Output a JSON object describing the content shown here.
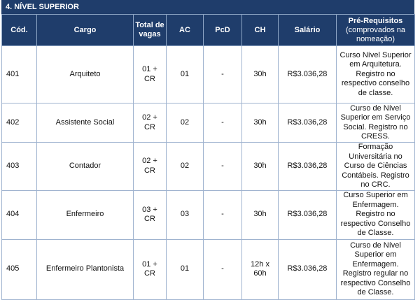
{
  "section_title": "4. NÍVEL SUPERIOR",
  "table": {
    "headers": [
      "Cód.",
      "Cargo",
      "Total de vagas",
      "AC",
      "PcD",
      "CH",
      "Salário"
    ],
    "prereq_header": {
      "title": "Pré-Requisitos",
      "note": "(comprovados na nomeação)"
    },
    "rows": [
      [
        "401",
        "Arquiteto",
        "01 + CR",
        "01",
        "-",
        "30h",
        "R$3.036,28",
        "Curso Nível Superior em Arquitetura. Registro no respectivo conselho de classe."
      ],
      [
        "402",
        "Assistente Social",
        "02 + CR",
        "02",
        "-",
        "30h",
        "R$3.036,28",
        "Curso de Nível Superior em Serviço Social. Registro no CRESS."
      ],
      [
        "403",
        "Contador",
        "02 + CR",
        "02",
        "-",
        "30h",
        "R$3.036,28",
        "Formação Universitária no Curso de Ciências Contábeis. Registro no CRC."
      ],
      [
        "404",
        "Enfermeiro",
        "03 + CR",
        "03",
        "-",
        "30h",
        "R$3.036,28",
        "Curso Superior em Enfermagem. Registro no respectivo Conselho de Classe."
      ],
      [
        "405",
        "Enfermeiro Plantonista",
        "01 + CR",
        "01",
        "-",
        "12h x 60h",
        "R$3.036,28",
        "Curso de Nível Superior em Enfermagem. Registro regular no respectivo Conselho de Classe."
      ]
    ]
  }
}
